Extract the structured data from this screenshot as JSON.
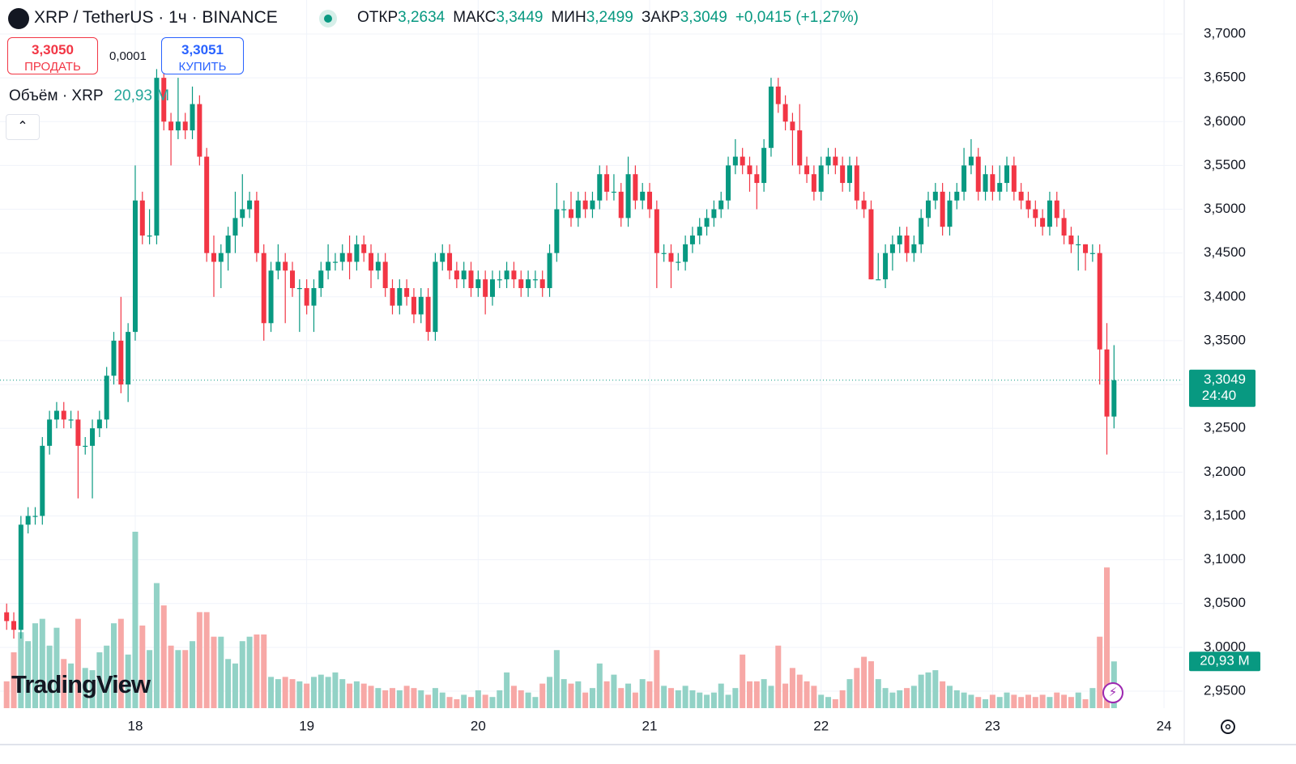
{
  "header": {
    "symbol": "XRP / TetherUS · 1ч · BINANCE",
    "ohlc": [
      {
        "label": "ОТКР",
        "value": "3,2634"
      },
      {
        "label": "МАКС",
        "value": "3,3449"
      },
      {
        "label": "МИН",
        "value": "3,2499"
      },
      {
        "label": "ЗАКР",
        "value": "3,3049"
      }
    ],
    "change": "+0,0415 (+1,27%)"
  },
  "trade": {
    "sell_price": "3,3050",
    "sell_label": "ПРОДАТЬ",
    "spread": "0,0001",
    "buy_price": "3,3051",
    "buy_label": "КУПИТЬ"
  },
  "volume_legend": {
    "label": "Объём · XRP",
    "value": "20,93 M"
  },
  "logo": "TradingView",
  "chart_data": {
    "type": "candlestick",
    "x": [
      6,
      7,
      8,
      9,
      10,
      11,
      12,
      13,
      14,
      15,
      16,
      17,
      18,
      19,
      20,
      21,
      22,
      23,
      24,
      25,
      26,
      27,
      28,
      29,
      30,
      31,
      32,
      33,
      34,
      35,
      36,
      37,
      38,
      39,
      40,
      41,
      42,
      43,
      44,
      45,
      46,
      47,
      48,
      49,
      50,
      51,
      52,
      53,
      54,
      55,
      56,
      57,
      58,
      59,
      60,
      61,
      62,
      63,
      64,
      65,
      66,
      67,
      68,
      69,
      70,
      71,
      72,
      73,
      74,
      75,
      76,
      77,
      78,
      79,
      80,
      81,
      82,
      83,
      84,
      85,
      86,
      87,
      88,
      89,
      90,
      91,
      92,
      93,
      94,
      95,
      96,
      97,
      98,
      99,
      100,
      101,
      102,
      103,
      104,
      105,
      106,
      107,
      108,
      109,
      110,
      111,
      112,
      113,
      114,
      115,
      116,
      117,
      118,
      119,
      120,
      121,
      122,
      123,
      124,
      125,
      126,
      127,
      128,
      129,
      130,
      131,
      132,
      133,
      134,
      135,
      136,
      137,
      138,
      139,
      140,
      141,
      142,
      143,
      144,
      145,
      146,
      147,
      148,
      149,
      150,
      151,
      152,
      153,
      154,
      155,
      156,
      157,
      158,
      159,
      160,
      161
    ],
    "open": [
      3.04,
      3.03,
      3.02,
      3.14,
      3.15,
      3.15,
      3.23,
      3.26,
      3.27,
      3.26,
      3.26,
      3.23,
      3.23,
      3.25,
      3.26,
      3.31,
      3.35,
      3.3,
      3.36,
      3.51,
      3.47,
      3.47,
      3.65,
      3.6,
      3.59,
      3.6,
      3.59,
      3.62,
      3.56,
      3.45,
      3.44,
      3.45,
      3.47,
      3.49,
      3.5,
      3.51,
      3.45,
      3.37,
      3.43,
      3.44,
      3.43,
      3.41,
      3.41,
      3.39,
      3.41,
      3.43,
      3.44,
      3.44,
      3.45,
      3.44,
      3.46,
      3.45,
      3.43,
      3.44,
      3.41,
      3.39,
      3.41,
      3.4,
      3.38,
      3.4,
      3.36,
      3.44,
      3.45,
      3.43,
      3.42,
      3.43,
      3.41,
      3.42,
      3.4,
      3.42,
      3.42,
      3.43,
      3.42,
      3.41,
      3.42,
      3.42,
      3.41,
      3.45,
      3.5,
      3.5,
      3.49,
      3.51,
      3.5,
      3.51,
      3.54,
      3.52,
      3.52,
      3.49,
      3.54,
      3.51,
      3.52,
      3.5,
      3.45,
      3.45,
      3.44,
      3.44,
      3.46,
      3.47,
      3.48,
      3.49,
      3.5,
      3.51,
      3.55,
      3.56,
      3.55,
      3.54,
      3.53,
      3.57,
      3.64,
      3.62,
      3.6,
      3.59,
      3.55,
      3.54,
      3.52,
      3.55,
      3.56,
      3.55,
      3.53,
      3.55,
      3.51,
      3.5,
      3.42,
      3.42,
      3.45,
      3.46,
      3.47,
      3.45,
      3.46,
      3.49,
      3.51,
      3.52,
      3.48,
      3.51,
      3.52,
      3.55,
      3.56,
      3.52,
      3.54,
      3.52,
      3.53,
      3.55,
      3.52,
      3.51,
      3.5,
      3.49,
      3.48,
      3.51,
      3.49,
      3.47,
      3.46,
      3.46,
      3.45,
      3.45,
      3.34,
      3.2634
    ],
    "high": [
      3.05,
      3.04,
      3.15,
      3.16,
      3.16,
      3.24,
      3.27,
      3.28,
      3.28,
      3.27,
      3.27,
      3.24,
      3.26,
      3.27,
      3.32,
      3.36,
      3.4,
      3.37,
      3.55,
      3.52,
      3.5,
      3.66,
      3.66,
      3.61,
      3.65,
      3.61,
      3.64,
      3.63,
      3.57,
      3.47,
      3.46,
      3.48,
      3.52,
      3.54,
      3.52,
      3.52,
      3.46,
      3.44,
      3.46,
      3.45,
      3.44,
      3.42,
      3.42,
      3.42,
      3.44,
      3.46,
      3.45,
      3.46,
      3.47,
      3.47,
      3.47,
      3.46,
      3.45,
      3.45,
      3.42,
      3.42,
      3.42,
      3.41,
      3.41,
      3.41,
      3.45,
      3.46,
      3.46,
      3.44,
      3.44,
      3.44,
      3.43,
      3.43,
      3.43,
      3.43,
      3.44,
      3.44,
      3.43,
      3.43,
      3.43,
      3.43,
      3.46,
      3.53,
      3.51,
      3.52,
      3.52,
      3.52,
      3.52,
      3.55,
      3.55,
      3.54,
      3.53,
      3.56,
      3.55,
      3.53,
      3.53,
      3.51,
      3.46,
      3.46,
      3.45,
      3.47,
      3.48,
      3.49,
      3.5,
      3.51,
      3.52,
      3.56,
      3.58,
      3.57,
      3.56,
      3.55,
      3.58,
      3.65,
      3.65,
      3.63,
      3.61,
      3.62,
      3.56,
      3.55,
      3.56,
      3.57,
      3.57,
      3.56,
      3.56,
      3.56,
      3.52,
      3.51,
      3.45,
      3.46,
      3.47,
      3.48,
      3.48,
      3.47,
      3.5,
      3.52,
      3.53,
      3.53,
      3.52,
      3.53,
      3.57,
      3.58,
      3.57,
      3.55,
      3.55,
      3.55,
      3.56,
      3.56,
      3.53,
      3.52,
      3.51,
      3.5,
      3.52,
      3.52,
      3.5,
      3.48,
      3.47,
      3.46,
      3.46,
      3.46,
      3.37,
      3.3449
    ],
    "low": [
      3.02,
      3.01,
      3.01,
      3.13,
      3.14,
      3.14,
      3.22,
      3.25,
      3.25,
      3.25,
      3.17,
      3.22,
      3.17,
      3.24,
      3.25,
      3.3,
      3.29,
      3.28,
      3.35,
      3.46,
      3.46,
      3.46,
      3.59,
      3.55,
      3.58,
      3.58,
      3.58,
      3.55,
      3.44,
      3.4,
      3.41,
      3.43,
      3.45,
      3.48,
      3.49,
      3.44,
      3.35,
      3.36,
      3.42,
      3.37,
      3.4,
      3.36,
      3.38,
      3.36,
      3.4,
      3.42,
      3.43,
      3.43,
      3.42,
      3.43,
      3.44,
      3.41,
      3.42,
      3.4,
      3.38,
      3.38,
      3.39,
      3.37,
      3.37,
      3.35,
      3.35,
      3.43,
      3.42,
      3.41,
      3.41,
      3.4,
      3.4,
      3.38,
      3.39,
      3.41,
      3.41,
      3.41,
      3.4,
      3.4,
      3.41,
      3.4,
      3.4,
      3.44,
      3.49,
      3.48,
      3.48,
      3.49,
      3.49,
      3.5,
      3.51,
      3.51,
      3.48,
      3.48,
      3.5,
      3.5,
      3.49,
      3.41,
      3.44,
      3.41,
      3.43,
      3.43,
      3.45,
      3.46,
      3.47,
      3.48,
      3.49,
      3.5,
      3.54,
      3.54,
      3.52,
      3.5,
      3.52,
      3.56,
      3.61,
      3.59,
      3.55,
      3.54,
      3.53,
      3.51,
      3.51,
      3.54,
      3.54,
      3.52,
      3.52,
      3.5,
      3.49,
      3.42,
      3.42,
      3.41,
      3.43,
      3.45,
      3.44,
      3.44,
      3.45,
      3.48,
      3.5,
      3.47,
      3.47,
      3.5,
      3.51,
      3.54,
      3.51,
      3.51,
      3.51,
      3.51,
      3.52,
      3.51,
      3.5,
      3.49,
      3.48,
      3.47,
      3.47,
      3.48,
      3.46,
      3.45,
      3.43,
      3.43,
      3.44,
      3.3,
      3.22,
      3.2499
    ],
    "close": [
      3.03,
      3.02,
      3.14,
      3.15,
      3.15,
      3.23,
      3.26,
      3.27,
      3.26,
      3.26,
      3.23,
      3.23,
      3.25,
      3.26,
      3.31,
      3.35,
      3.3,
      3.36,
      3.51,
      3.47,
      3.47,
      3.65,
      3.6,
      3.59,
      3.6,
      3.59,
      3.62,
      3.56,
      3.45,
      3.44,
      3.45,
      3.47,
      3.49,
      3.5,
      3.51,
      3.45,
      3.37,
      3.43,
      3.44,
      3.43,
      3.41,
      3.41,
      3.39,
      3.41,
      3.43,
      3.44,
      3.44,
      3.45,
      3.44,
      3.46,
      3.45,
      3.43,
      3.44,
      3.41,
      3.39,
      3.41,
      3.4,
      3.38,
      3.4,
      3.36,
      3.44,
      3.45,
      3.43,
      3.42,
      3.43,
      3.41,
      3.42,
      3.4,
      3.42,
      3.42,
      3.43,
      3.42,
      3.41,
      3.42,
      3.42,
      3.41,
      3.45,
      3.5,
      3.5,
      3.49,
      3.51,
      3.5,
      3.51,
      3.54,
      3.52,
      3.52,
      3.49,
      3.54,
      3.51,
      3.52,
      3.5,
      3.45,
      3.45,
      3.44,
      3.44,
      3.46,
      3.47,
      3.48,
      3.49,
      3.5,
      3.51,
      3.55,
      3.56,
      3.55,
      3.54,
      3.53,
      3.57,
      3.64,
      3.62,
      3.6,
      3.59,
      3.55,
      3.54,
      3.52,
      3.55,
      3.56,
      3.55,
      3.53,
      3.55,
      3.51,
      3.5,
      3.42,
      3.42,
      3.45,
      3.46,
      3.47,
      3.45,
      3.46,
      3.49,
      3.51,
      3.52,
      3.48,
      3.51,
      3.52,
      3.55,
      3.56,
      3.52,
      3.54,
      3.52,
      3.53,
      3.55,
      3.52,
      3.51,
      3.5,
      3.49,
      3.48,
      3.51,
      3.49,
      3.47,
      3.46,
      3.46,
      3.45,
      3.45,
      3.34,
      3.2634,
      3.3049
    ],
    "volume": [
      12,
      25,
      34,
      30,
      38,
      40,
      28,
      36,
      22,
      20,
      40,
      18,
      17,
      25,
      28,
      38,
      40,
      24,
      79,
      37,
      26,
      56,
      46,
      28,
      26,
      26,
      30,
      43,
      43,
      32,
      32,
      22,
      20,
      30,
      32,
      33,
      33,
      14,
      13,
      14,
      13,
      12,
      11,
      14,
      15,
      14,
      16,
      13,
      11,
      12,
      11,
      10,
      9,
      8,
      9,
      8,
      10,
      9,
      8,
      6,
      9,
      7,
      5,
      4,
      6,
      5,
      8,
      6,
      5,
      8,
      16,
      10,
      8,
      7,
      5,
      11,
      14,
      26,
      13,
      11,
      12,
      7,
      9,
      20,
      12,
      15,
      9,
      11,
      7,
      13,
      12,
      26,
      10,
      9,
      8,
      10,
      8,
      7,
      6,
      7,
      11,
      6,
      9,
      24,
      12,
      12,
      13,
      10,
      28,
      11,
      18,
      15,
      12,
      10,
      6,
      5,
      4,
      8,
      13,
      18,
      23,
      21,
      13,
      9,
      7,
      8,
      9,
      10,
      15,
      16,
      17,
      12,
      10,
      8,
      7,
      6,
      5,
      4,
      6,
      5,
      7,
      6,
      5,
      6,
      5,
      6,
      5,
      7,
      6,
      5,
      7,
      4,
      9,
      32,
      63,
      20.93
    ],
    "xlim": [
      5.07,
      170.6
    ],
    "xticks": [
      {
        "value": 24,
        "label": "18"
      },
      {
        "value": 48,
        "label": "19"
      },
      {
        "value": 72,
        "label": "20"
      },
      {
        "value": 96,
        "label": "21"
      },
      {
        "value": 120,
        "label": "22"
      },
      {
        "value": 144,
        "label": "23"
      },
      {
        "value": 168,
        "label": "24"
      }
    ],
    "ylim": [
      2.9306,
      3.7388
    ],
    "yticks": [
      {
        "value": 3.7,
        "label": "3,7000"
      },
      {
        "value": 3.65,
        "label": "3,6500"
      },
      {
        "value": 3.6,
        "label": "3,6000"
      },
      {
        "value": 3.55,
        "label": "3,5500"
      },
      {
        "value": 3.5,
        "label": "3,5000"
      },
      {
        "value": 3.45,
        "label": "3,4500"
      },
      {
        "value": 3.4,
        "label": "3,4000"
      },
      {
        "value": 3.35,
        "label": "3,3500"
      },
      {
        "value": 3.3,
        "label": "3,3000"
      },
      {
        "value": 3.25,
        "label": "3,2500"
      },
      {
        "value": 3.2,
        "label": "3,2000"
      },
      {
        "value": 3.15,
        "label": "3,1500"
      },
      {
        "value": 3.1,
        "label": "3,1000"
      },
      {
        "value": 3.05,
        "label": "3,0500"
      },
      {
        "value": 3.0,
        "label": "3,0000"
      },
      {
        "value": 2.95,
        "label": "2,9500"
      }
    ],
    "last_price": {
      "value": 3.3049,
      "label": "3,3049",
      "countdown": "24:40"
    },
    "colors": {
      "up": "#089981",
      "down": "#f23645",
      "volume_up": "#92d2c6",
      "volume_down": "#f7a8a6"
    },
    "grid": true
  }
}
